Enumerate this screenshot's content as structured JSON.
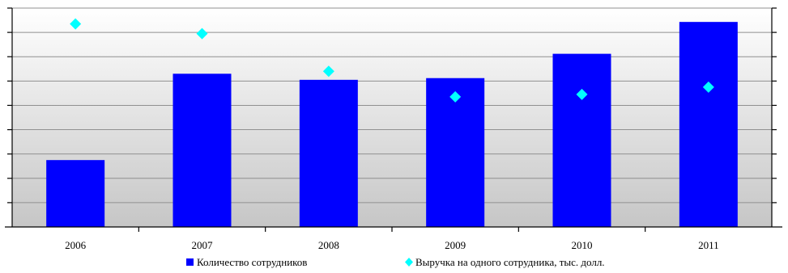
{
  "chart_data": {
    "type": "bar",
    "categories": [
      "2006",
      "2007",
      "2008",
      "2009",
      "2010",
      "2011"
    ],
    "series": [
      {
        "name": "Количество сотрудников",
        "kind": "bar",
        "axis": "left",
        "color": "#0000ff",
        "values": [
          2.75,
          6.3,
          6.05,
          6.12,
          7.12,
          8.43
        ]
      },
      {
        "name": "Выручка на одного сотрудника, тыс. долл.",
        "kind": "scatter",
        "marker": "diamond",
        "axis": "right",
        "color": "#00ffff",
        "values": [
          8.35,
          7.95,
          6.4,
          5.35,
          5.45,
          5.75
        ]
      }
    ],
    "title": "",
    "xlabel": "",
    "ylabel": "",
    "ylim": [
      0,
      9
    ],
    "y2lim": [
      0,
      9
    ],
    "y_tick_labels": "none",
    "grid": true,
    "background": "gradient white-to-gray",
    "legend_position": "bottom"
  }
}
